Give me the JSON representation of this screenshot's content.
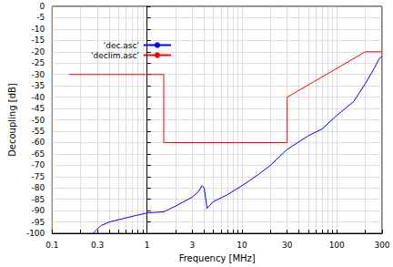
{
  "chart_data": {
    "type": "line",
    "x_label": "Frequency [MHz]",
    "y_label": "Decoupling [dB]",
    "log": "x",
    "grid": true,
    "legend": "upper left",
    "xlim": [
      0.1,
      300
    ],
    "ylim": [
      -100,
      0
    ],
    "xticks": [
      0.1,
      0.3,
      1,
      3,
      10,
      30,
      100,
      300
    ],
    "yticks": [
      -100,
      -95,
      -90,
      -85,
      -80,
      -75,
      -70,
      -65,
      -60,
      -55,
      -50,
      -45,
      -40,
      -35,
      -30,
      -25,
      -20,
      -15,
      -10,
      -5,
      0
    ],
    "series": [
      {
        "name": "'dec.asc'",
        "color": "#0000ff",
        "x": [
          0.27,
          0.3,
          0.33,
          0.4,
          0.5,
          0.7,
          1,
          1.5,
          2,
          3,
          3.5,
          3.8,
          4.0,
          4.3,
          5,
          7,
          10,
          15,
          20,
          30,
          50,
          70,
          100,
          150,
          200,
          250,
          280,
          300
        ],
        "values": [
          -100,
          -98,
          -96.5,
          -95,
          -94,
          -92.5,
          -91,
          -90.5,
          -88,
          -84,
          -81.5,
          -79,
          -80,
          -89,
          -86,
          -83,
          -79,
          -74,
          -70,
          -63,
          -57,
          -54,
          -48,
          -42,
          -34,
          -27,
          -23,
          -22
        ]
      },
      {
        "name": "'declim.asc'",
        "color": "#ff0000",
        "x": [
          0.15,
          1.5,
          1.5,
          30,
          30,
          200,
          300
        ],
        "values": [
          -30,
          -30,
          -60,
          -60,
          -40,
          -20,
          -20
        ]
      }
    ]
  }
}
